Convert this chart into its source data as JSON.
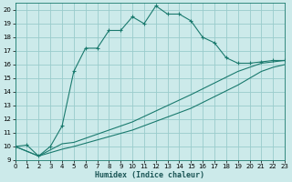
{
  "xlabel": "Humidex (Indice chaleur)",
  "bg_color": "#cceaea",
  "grid_color": "#99cccc",
  "line_color": "#1a7a6e",
  "xlim": [
    0,
    23
  ],
  "ylim": [
    9,
    20.5
  ],
  "xticks": [
    0,
    1,
    2,
    3,
    4,
    5,
    6,
    7,
    8,
    9,
    10,
    11,
    12,
    13,
    14,
    15,
    16,
    17,
    18,
    19,
    20,
    21,
    22,
    23
  ],
  "yticks": [
    9,
    10,
    11,
    12,
    13,
    14,
    15,
    16,
    17,
    18,
    19,
    20
  ],
  "line1_x": [
    0,
    1,
    2,
    3,
    4,
    5,
    6,
    7,
    8,
    9,
    10,
    11,
    12,
    13,
    14,
    15,
    16,
    17,
    18,
    19,
    20,
    21,
    22,
    23
  ],
  "line1_y": [
    10.0,
    10.1,
    9.3,
    10.0,
    11.5,
    15.5,
    17.2,
    17.2,
    18.5,
    18.5,
    19.5,
    19.0,
    20.3,
    19.7,
    19.7,
    19.2,
    18.0,
    17.6,
    16.5,
    16.1,
    16.1,
    16.2,
    16.3,
    16.3
  ],
  "line2_x": [
    0,
    2,
    4,
    5,
    10,
    15,
    19,
    21,
    22,
    23
  ],
  "line2_y": [
    10.0,
    9.3,
    10.2,
    10.3,
    11.8,
    13.8,
    15.5,
    16.1,
    16.2,
    16.3
  ],
  "line3_x": [
    0,
    2,
    4,
    5,
    10,
    15,
    19,
    21,
    22,
    23
  ],
  "line3_y": [
    10.0,
    9.3,
    9.8,
    10.0,
    11.2,
    12.8,
    14.5,
    15.5,
    15.8,
    16.0
  ]
}
